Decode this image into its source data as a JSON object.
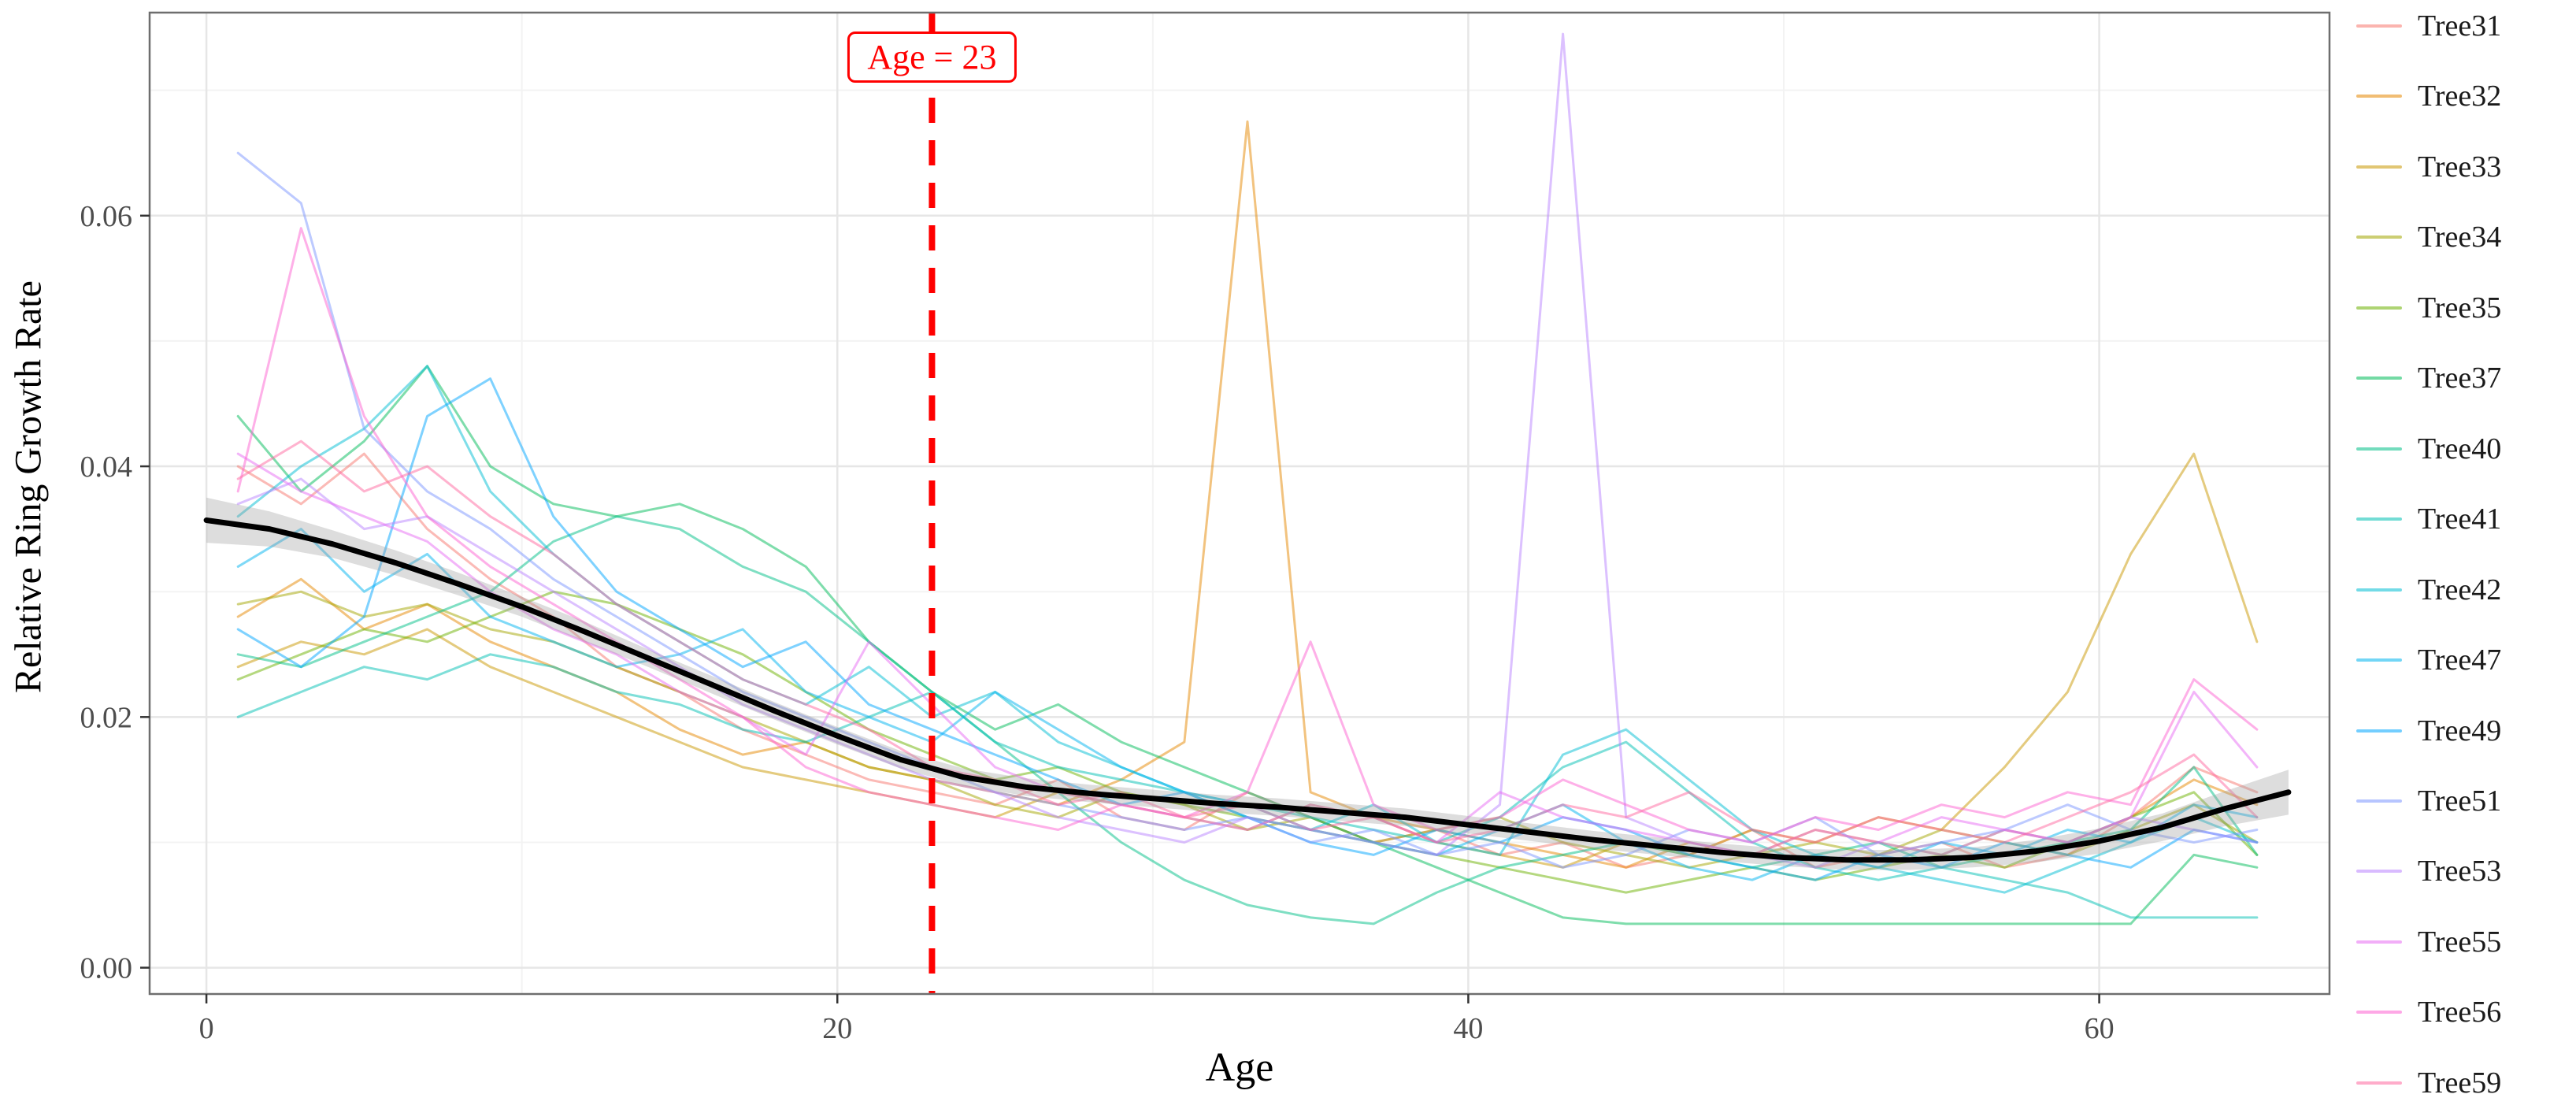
{
  "chart_data": {
    "type": "line",
    "title": "",
    "xlabel": "Age",
    "ylabel": "Relative Ring Growth Rate",
    "legend_position": "right",
    "grid": true,
    "x_range": [
      -1.8,
      67.3
    ],
    "y_range": [
      -0.0021,
      0.0762
    ],
    "x_ticks": [
      0,
      20,
      40,
      60
    ],
    "x_tick_labels": [
      "0",
      "20",
      "40",
      "60"
    ],
    "y_ticks": [
      0,
      0.02,
      0.04,
      0.06
    ],
    "y_tick_labels": [
      "0.00",
      "0.02",
      "0.04",
      "0.06"
    ],
    "x_minor_ticks": [
      10,
      30,
      50
    ],
    "y_minor_ticks": [
      0.01,
      0.03,
      0.05,
      0.07
    ],
    "vline": {
      "x": 23,
      "label": "Age = 23",
      "color": "#FF0000",
      "style": "dashed"
    },
    "smooth": {
      "name": "smooth-trend",
      "color": "#000000",
      "band_color": "#9e9e9e",
      "x": [
        0,
        2,
        4,
        6,
        8,
        10,
        12,
        14,
        16,
        18,
        20,
        22,
        24,
        26,
        28,
        30,
        32,
        34,
        36,
        38,
        40,
        42,
        44,
        46,
        48,
        50,
        52,
        54,
        56,
        58,
        60,
        62,
        64,
        66
      ],
      "y": [
        0.0357,
        0.035,
        0.0338,
        0.0323,
        0.0306,
        0.0288,
        0.0268,
        0.0247,
        0.0226,
        0.0205,
        0.0185,
        0.0166,
        0.0152,
        0.0144,
        0.0139,
        0.0135,
        0.0131,
        0.0128,
        0.0124,
        0.012,
        0.0114,
        0.0108,
        0.0102,
        0.0097,
        0.0092,
        0.0088,
        0.0086,
        0.0086,
        0.0088,
        0.0093,
        0.0101,
        0.0112,
        0.0127,
        0.014
      ],
      "se": [
        0.0018,
        0.0014,
        0.0011,
        0.001,
        0.0009,
        0.0008,
        0.0008,
        0.0007,
        0.0007,
        0.0007,
        0.0007,
        0.0007,
        0.0007,
        0.0007,
        0.0007,
        0.0007,
        0.0007,
        0.0007,
        0.0007,
        0.0007,
        0.0007,
        0.0007,
        0.0007,
        0.0007,
        0.0007,
        0.0007,
        0.0008,
        0.0008,
        0.0008,
        0.0009,
        0.001,
        0.0011,
        0.0014,
        0.0018
      ]
    },
    "series_start_age": 1,
    "series_age_step": 2,
    "series": [
      {
        "name": "Tree31",
        "color": "#F8766D",
        "values": [
          0.04,
          0.037,
          0.041,
          0.035,
          0.031,
          0.028,
          0.024,
          0.022,
          0.019,
          0.017,
          0.015,
          0.014,
          0.013,
          0.015,
          0.012,
          0.011,
          0.014,
          0.012,
          0.01,
          0.011,
          0.009,
          0.01,
          0.008,
          0.009,
          0.011,
          0.008,
          0.009,
          0.01,
          0.008,
          0.009,
          0.012,
          0.016,
          0.014
        ]
      },
      {
        "name": "Tree32",
        "color": "#E58700",
        "values": [
          0.028,
          0.031,
          0.027,
          0.029,
          0.026,
          0.024,
          0.022,
          0.019,
          0.017,
          0.018,
          0.016,
          0.015,
          0.014,
          0.013,
          0.015,
          0.018,
          0.0675,
          0.014,
          0.012,
          0.011,
          0.01,
          0.009,
          0.008,
          0.01,
          0.009,
          0.011,
          0.01,
          0.009,
          0.011,
          0.01,
          0.012,
          0.015,
          0.013
        ]
      },
      {
        "name": "Tree33",
        "color": "#C99800",
        "values": [
          0.024,
          0.026,
          0.025,
          0.027,
          0.024,
          0.022,
          0.02,
          0.018,
          0.016,
          0.015,
          0.014,
          0.013,
          0.012,
          0.014,
          0.013,
          0.012,
          0.011,
          0.013,
          0.012,
          0.01,
          0.009,
          0.008,
          0.01,
          0.009,
          0.011,
          0.01,
          0.012,
          0.011,
          0.016,
          0.022,
          0.033,
          0.041,
          0.026
        ]
      },
      {
        "name": "Tree34",
        "color": "#A3A500",
        "values": [
          0.029,
          0.03,
          0.028,
          0.029,
          0.027,
          0.026,
          0.024,
          0.022,
          0.02,
          0.018,
          0.016,
          0.015,
          0.013,
          0.012,
          0.014,
          0.013,
          0.011,
          0.012,
          0.01,
          0.011,
          0.012,
          0.01,
          0.009,
          0.008,
          0.009,
          0.01,
          0.009,
          0.011,
          0.01,
          0.009,
          0.011,
          0.013,
          0.01
        ]
      },
      {
        "name": "Tree35",
        "color": "#6BB100",
        "values": [
          0.023,
          0.025,
          0.027,
          0.026,
          0.028,
          0.03,
          0.029,
          0.027,
          0.025,
          0.022,
          0.019,
          0.017,
          0.015,
          0.016,
          0.014,
          0.013,
          0.012,
          0.011,
          0.01,
          0.009,
          0.008,
          0.007,
          0.006,
          0.007,
          0.008,
          0.007,
          0.008,
          0.009,
          0.008,
          0.01,
          0.012,
          0.014,
          0.009
        ]
      },
      {
        "name": "Tree37",
        "color": "#00BC59",
        "values": [
          0.044,
          0.038,
          0.042,
          0.048,
          0.04,
          0.037,
          0.036,
          0.037,
          0.035,
          0.032,
          0.026,
          0.022,
          0.019,
          0.021,
          0.018,
          0.016,
          0.014,
          0.012,
          0.01,
          0.008,
          0.006,
          0.004,
          0.0035,
          0.0035,
          0.0035,
          0.0035,
          0.0035,
          0.0035,
          0.0035,
          0.0035,
          0.0035,
          0.009,
          0.008
        ]
      },
      {
        "name": "Tree40",
        "color": "#00C087",
        "values": [
          0.025,
          0.024,
          0.026,
          0.028,
          0.03,
          0.034,
          0.036,
          0.035,
          0.032,
          0.03,
          0.026,
          0.022,
          0.018,
          0.014,
          0.01,
          0.007,
          0.005,
          0.004,
          0.0035,
          0.006,
          0.008,
          0.009,
          0.01,
          0.009,
          0.008,
          0.009,
          0.01,
          0.008,
          0.009,
          0.01,
          0.011,
          0.016,
          0.009
        ]
      },
      {
        "name": "Tree41",
        "color": "#00C0B3",
        "values": [
          0.02,
          0.022,
          0.024,
          0.023,
          0.025,
          0.024,
          0.022,
          0.021,
          0.019,
          0.018,
          0.02,
          0.022,
          0.018,
          0.016,
          0.015,
          0.014,
          0.013,
          0.012,
          0.011,
          0.01,
          0.012,
          0.016,
          0.018,
          0.014,
          0.01,
          0.008,
          0.007,
          0.008,
          0.007,
          0.006,
          0.004,
          0.004,
          0.004
        ]
      },
      {
        "name": "Tree42",
        "color": "#00BDD4",
        "values": [
          0.036,
          0.04,
          0.043,
          0.048,
          0.038,
          0.033,
          0.029,
          0.026,
          0.023,
          0.021,
          0.024,
          0.02,
          0.022,
          0.018,
          0.016,
          0.014,
          0.012,
          0.011,
          0.013,
          0.01,
          0.009,
          0.017,
          0.019,
          0.015,
          0.011,
          0.009,
          0.008,
          0.007,
          0.006,
          0.008,
          0.01,
          0.012,
          0.01
        ]
      },
      {
        "name": "Tree47",
        "color": "#00B4EF",
        "values": [
          0.032,
          0.035,
          0.03,
          0.033,
          0.028,
          0.026,
          0.024,
          0.025,
          0.027,
          0.022,
          0.02,
          0.018,
          0.022,
          0.019,
          0.016,
          0.014,
          0.013,
          0.011,
          0.01,
          0.009,
          0.011,
          0.013,
          0.01,
          0.008,
          0.007,
          0.009,
          0.008,
          0.01,
          0.009,
          0.011,
          0.01,
          0.013,
          0.012
        ]
      },
      {
        "name": "Tree49",
        "color": "#00A5FF",
        "values": [
          0.027,
          0.024,
          0.028,
          0.044,
          0.047,
          0.036,
          0.03,
          0.027,
          0.024,
          0.026,
          0.021,
          0.019,
          0.017,
          0.015,
          0.013,
          0.014,
          0.012,
          0.01,
          0.009,
          0.011,
          0.01,
          0.012,
          0.011,
          0.009,
          0.008,
          0.007,
          0.009,
          0.008,
          0.01,
          0.009,
          0.008,
          0.011,
          0.01
        ]
      },
      {
        "name": "Tree51",
        "color": "#7C96FF",
        "values": [
          0.065,
          0.061,
          0.043,
          0.038,
          0.035,
          0.031,
          0.028,
          0.025,
          0.022,
          0.02,
          0.018,
          0.016,
          0.014,
          0.013,
          0.012,
          0.011,
          0.012,
          0.01,
          0.011,
          0.009,
          0.01,
          0.008,
          0.009,
          0.011,
          0.01,
          0.012,
          0.009,
          0.01,
          0.011,
          0.013,
          0.011,
          0.01,
          0.011
        ]
      },
      {
        "name": "Tree53",
        "color": "#B983FF",
        "values": [
          0.037,
          0.039,
          0.035,
          0.036,
          0.033,
          0.03,
          0.027,
          0.024,
          0.021,
          0.019,
          0.017,
          0.015,
          0.014,
          0.012,
          0.011,
          0.01,
          0.012,
          0.011,
          0.01,
          0.009,
          0.013,
          0.0745,
          0.012,
          0.01,
          0.009,
          0.008,
          0.01,
          0.009,
          0.011,
          0.01,
          0.012,
          0.011,
          0.01
        ]
      },
      {
        "name": "Tree55",
        "color": "#E76BF3",
        "values": [
          0.041,
          0.038,
          0.036,
          0.034,
          0.03,
          0.027,
          0.025,
          0.022,
          0.02,
          0.017,
          0.026,
          0.021,
          0.016,
          0.014,
          0.013,
          0.012,
          0.011,
          0.013,
          0.012,
          0.01,
          0.014,
          0.012,
          0.011,
          0.01,
          0.009,
          0.011,
          0.01,
          0.012,
          0.011,
          0.01,
          0.012,
          0.022,
          0.016
        ]
      },
      {
        "name": "Tree56",
        "color": "#FD61D1",
        "values": [
          0.038,
          0.059,
          0.044,
          0.036,
          0.032,
          0.029,
          0.026,
          0.023,
          0.02,
          0.016,
          0.014,
          0.013,
          0.012,
          0.011,
          0.013,
          0.012,
          0.014,
          0.026,
          0.013,
          0.011,
          0.012,
          0.015,
          0.013,
          0.011,
          0.01,
          0.012,
          0.011,
          0.013,
          0.012,
          0.014,
          0.013,
          0.023,
          0.019
        ]
      },
      {
        "name": "Tree59",
        "color": "#FF689F",
        "values": [
          0.039,
          0.042,
          0.038,
          0.04,
          0.036,
          0.033,
          0.029,
          0.026,
          0.023,
          0.021,
          0.019,
          0.016,
          0.015,
          0.013,
          0.014,
          0.012,
          0.013,
          0.011,
          0.012,
          0.01,
          0.011,
          0.013,
          0.012,
          0.014,
          0.011,
          0.01,
          0.012,
          0.011,
          0.01,
          0.012,
          0.014,
          0.017,
          0.012
        ]
      }
    ]
  }
}
